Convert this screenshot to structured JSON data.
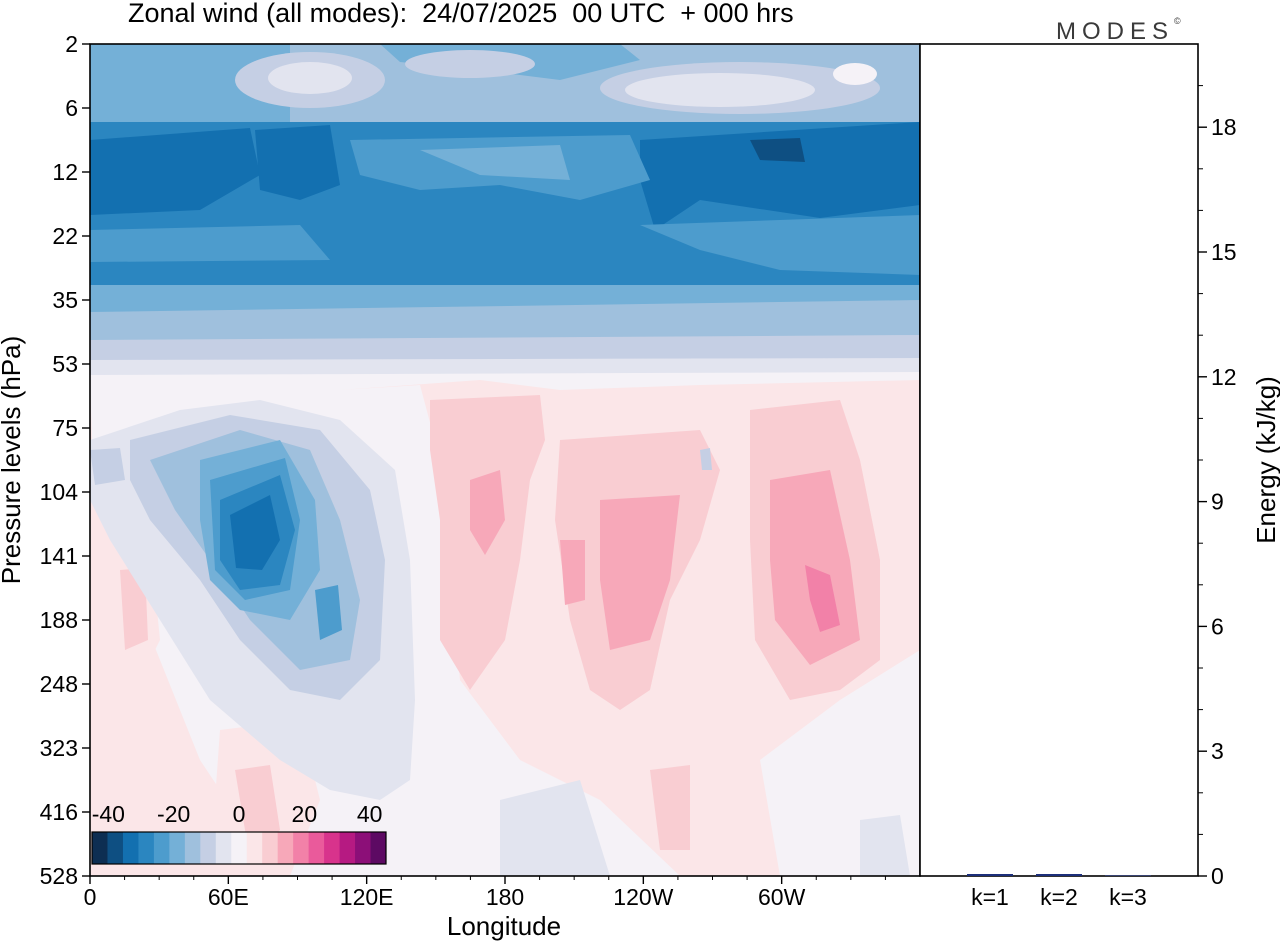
{
  "header": {
    "title": "Zonal wind (all modes):  24/07/2025  00 UTC  + 000 hrs",
    "brand": "MODES",
    "brand_mark": "©"
  },
  "chart_data": [
    {
      "type": "heatmap",
      "title": "Zonal wind (all modes):  24/07/2025  00 UTC  + 000 hrs",
      "xlabel": "Longitude",
      "ylabel": "Pressure levels (hPa)",
      "x_ticks": [
        "0",
        "60E",
        "120E",
        "180",
        "120W",
        "60W"
      ],
      "y_ticks": [
        "2",
        "6",
        "12",
        "22",
        "35",
        "53",
        "75",
        "104",
        "141",
        "188",
        "248",
        "323",
        "416",
        "528"
      ],
      "colorbar": {
        "tick_labels": [
          "-40",
          "-20",
          "0",
          "20",
          "40"
        ],
        "range": [
          -45,
          45
        ],
        "colors": [
          "#0d2e52",
          "#0e4f82",
          "#1370b0",
          "#2b86c0",
          "#4d9ccd",
          "#74b0d7",
          "#9fc0dd",
          "#c5cfe4",
          "#e2e4ef",
          "#f5f2f7",
          "#fbe6e8",
          "#f9cdd2",
          "#f7a8b9",
          "#f281a8",
          "#ea5a9b",
          "#d8338c",
          "#b61a82",
          "#8c0f78",
          "#5d0a63"
        ]
      },
      "bands": [
        {
          "levels": "2-6",
          "zonal_wind": "-25 to -10"
        },
        {
          "levels": "6-35",
          "zonal_wind": "-35 to -20"
        },
        {
          "levels": "35-53",
          "zonal_wind": "-15 to -5"
        },
        {
          "levels": "53-528",
          "zonal_wind": "-30 to 25"
        }
      ]
    },
    {
      "type": "bar",
      "ylabel": "Energy (kJ/kg)",
      "categories": [
        "k=1",
        "k=2",
        "k=3"
      ],
      "values": [
        0.04,
        0.01,
        0.0
      ],
      "ylim": [
        0,
        20
      ],
      "y_ticks": [
        "0",
        "3",
        "6",
        "9",
        "12",
        "15",
        "18"
      ],
      "bar_color": "#1c2f7a"
    }
  ]
}
